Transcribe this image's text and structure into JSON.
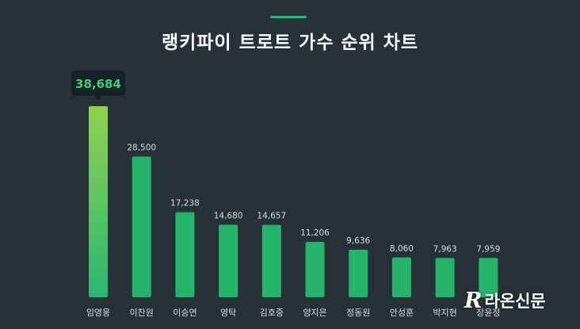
{
  "chart_data": {
    "type": "bar",
    "title": "랭키파이 트로트 가수 순위 차트",
    "categories": [
      "임영웅",
      "이찬원",
      "이승연",
      "영탁",
      "김호중",
      "양지은",
      "정동원",
      "안성훈",
      "박지현",
      "장윤정"
    ],
    "values": [
      38684,
      28500,
      17238,
      14680,
      14657,
      11206,
      9636,
      8060,
      7963,
      7959
    ],
    "value_labels": [
      "38,684",
      "28,500",
      "17,238",
      "14,680",
      "14,657",
      "11,206",
      "9,636",
      "8,060",
      "7,963",
      "7,959"
    ],
    "ylim": [
      0,
      38684
    ],
    "grid": false,
    "highlight_index": 0,
    "colors": {
      "background": "#263238",
      "bar": "#26b36a",
      "bar_highlight_top": "#8fd14f",
      "bar_highlight_bottom": "#2bb673",
      "tooltip_bg": "#1a2226",
      "tooltip_text": "#3ecf7a",
      "label": "#d8dde0",
      "accent": "#2bb673"
    }
  },
  "watermark": {
    "logo_glyph": "R",
    "text": "라온신문"
  }
}
